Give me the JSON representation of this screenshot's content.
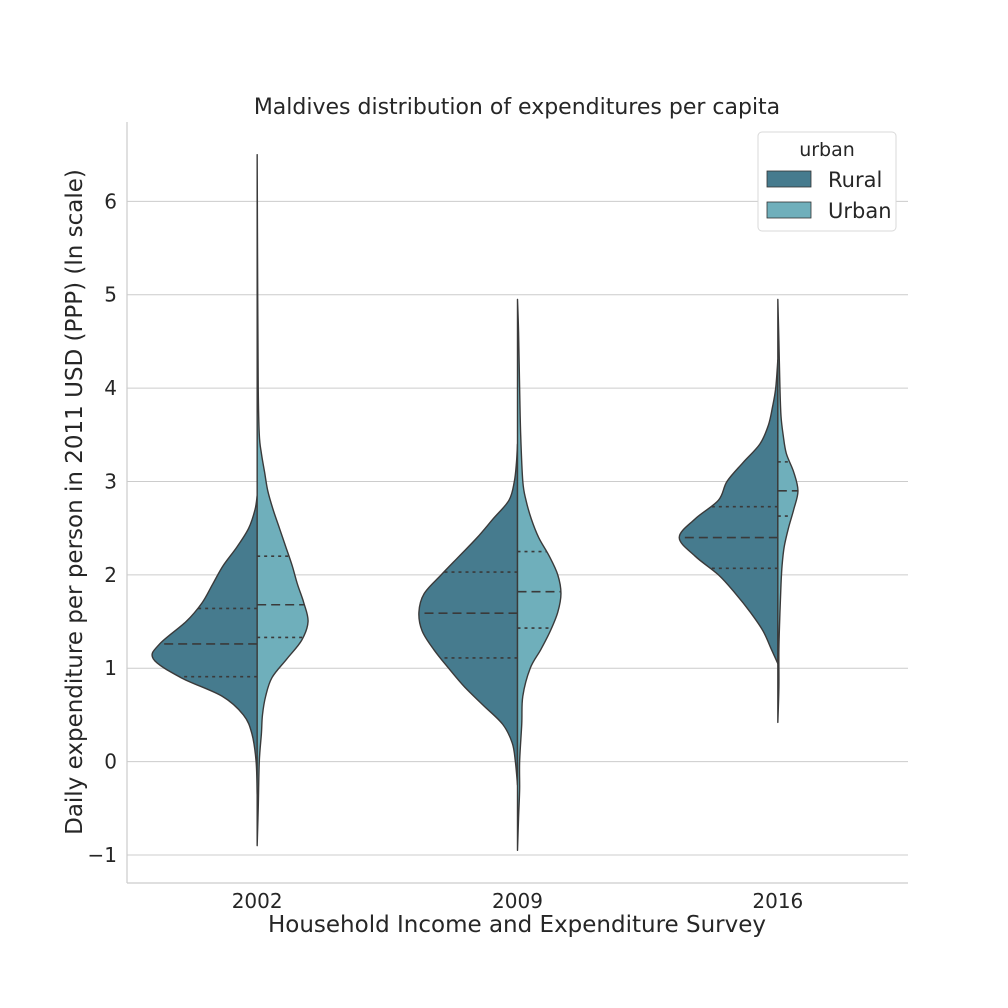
{
  "chart_data": {
    "type": "violin",
    "title": "Maldives distribution of expenditures per capita",
    "xlabel": "Household Income and Expenditure Survey",
    "ylabel": "Daily expenditure per person in 2011 USD (PPP) (ln scale)",
    "categories": [
      "2002",
      "2009",
      "2016"
    ],
    "ylim": [
      -1.3,
      6.85
    ],
    "yticks": [
      -1,
      0,
      1,
      2,
      3,
      4,
      5,
      6
    ],
    "ytick_labels": [
      "−1",
      "0",
      "1",
      "2",
      "3",
      "4",
      "5",
      "6"
    ],
    "grid": "horizontal",
    "split": true,
    "inner": "quartile",
    "legend": {
      "title": "urban",
      "placement": "top-right",
      "entries": [
        {
          "label": "Rural",
          "color": "#467b8e"
        },
        {
          "label": "Urban",
          "color": "#6fafbb"
        }
      ]
    },
    "series": [
      {
        "name": "Rural",
        "color": "#467b8e",
        "groups": [
          {
            "category": "2002",
            "quartiles": [
              0.91,
              1.26,
              1.64
            ],
            "profile": [
              [
                -0.35,
                0
              ],
              [
                0,
                0.01
              ],
              [
                0.3,
                0.05
              ],
              [
                0.5,
                0.13
              ],
              [
                0.7,
                0.33
              ],
              [
                0.9,
                0.72
              ],
              [
                1.1,
                0.98
              ],
              [
                1.26,
                0.92
              ],
              [
                1.5,
                0.67
              ],
              [
                1.7,
                0.52
              ],
              [
                1.9,
                0.42
              ],
              [
                2.1,
                0.32
              ],
              [
                2.3,
                0.19
              ],
              [
                2.5,
                0.08
              ],
              [
                2.7,
                0.02
              ],
              [
                2.85,
                0
              ]
            ]
          },
          {
            "category": "2009",
            "quartiles": [
              1.11,
              1.59,
              2.03
            ],
            "profile": [
              [
                -0.25,
                0
              ],
              [
                0,
                0.02
              ],
              [
                0.2,
                0.05
              ],
              [
                0.4,
                0.14
              ],
              [
                0.6,
                0.32
              ],
              [
                0.8,
                0.5
              ],
              [
                1.0,
                0.65
              ],
              [
                1.2,
                0.79
              ],
              [
                1.4,
                0.9
              ],
              [
                1.6,
                0.93
              ],
              [
                1.8,
                0.88
              ],
              [
                2.0,
                0.72
              ],
              [
                2.2,
                0.55
              ],
              [
                2.4,
                0.38
              ],
              [
                2.6,
                0.23
              ],
              [
                2.8,
                0.08
              ],
              [
                3.0,
                0.03
              ],
              [
                3.2,
                0.01
              ],
              [
                3.4,
                0
              ]
            ]
          },
          {
            "category": "2016",
            "quartiles": [
              2.07,
              2.4,
              2.73
            ],
            "profile": [
              [
                1.05,
                0
              ],
              [
                1.2,
                0.06
              ],
              [
                1.4,
                0.14
              ],
              [
                1.6,
                0.26
              ],
              [
                1.8,
                0.4
              ],
              [
                2.0,
                0.56
              ],
              [
                2.2,
                0.78
              ],
              [
                2.4,
                0.93
              ],
              [
                2.6,
                0.78
              ],
              [
                2.8,
                0.56
              ],
              [
                3.0,
                0.48
              ],
              [
                3.2,
                0.33
              ],
              [
                3.4,
                0.17
              ],
              [
                3.6,
                0.09
              ],
              [
                3.8,
                0.05
              ],
              [
                4.0,
                0.02
              ],
              [
                4.3,
                0
              ]
            ]
          }
        ]
      },
      {
        "name": "Urban",
        "color": "#6fafbb",
        "groups": [
          {
            "category": "2002",
            "quartiles": [
              1.33,
              1.68,
              2.2
            ],
            "profile": [
              [
                -0.9,
                0
              ],
              [
                -0.5,
                0.01
              ],
              [
                0,
                0.02
              ],
              [
                0.3,
                0.04
              ],
              [
                0.5,
                0.05
              ],
              [
                0.7,
                0.08
              ],
              [
                0.9,
                0.14
              ],
              [
                1.1,
                0.28
              ],
              [
                1.3,
                0.42
              ],
              [
                1.5,
                0.48
              ],
              [
                1.7,
                0.44
              ],
              [
                1.9,
                0.38
              ],
              [
                2.1,
                0.33
              ],
              [
                2.3,
                0.27
              ],
              [
                2.5,
                0.21
              ],
              [
                2.7,
                0.15
              ],
              [
                2.9,
                0.1
              ],
              [
                3.1,
                0.07
              ],
              [
                3.3,
                0.04
              ],
              [
                3.5,
                0.02
              ],
              [
                4.0,
                0.01
              ],
              [
                5.0,
                0.005
              ],
              [
                6.5,
                0
              ]
            ]
          },
          {
            "category": "2009",
            "quartiles": [
              1.43,
              1.82,
              2.25
            ],
            "profile": [
              [
                -0.95,
                0
              ],
              [
                -0.6,
                0.01
              ],
              [
                -0.3,
                0.02
              ],
              [
                0,
                0.02
              ],
              [
                0.4,
                0.04
              ],
              [
                0.7,
                0.05
              ],
              [
                1.0,
                0.12
              ],
              [
                1.2,
                0.22
              ],
              [
                1.4,
                0.31
              ],
              [
                1.6,
                0.38
              ],
              [
                1.8,
                0.41
              ],
              [
                2.0,
                0.38
              ],
              [
                2.2,
                0.3
              ],
              [
                2.4,
                0.2
              ],
              [
                2.6,
                0.13
              ],
              [
                2.8,
                0.08
              ],
              [
                3.0,
                0.05
              ],
              [
                3.5,
                0.03
              ],
              [
                4.0,
                0.02
              ],
              [
                4.6,
                0.01
              ],
              [
                4.95,
                0
              ]
            ]
          },
          {
            "category": "2016",
            "quartiles": [
              2.63,
              2.9,
              3.21
            ],
            "profile": [
              [
                0.42,
                0
              ],
              [
                0.8,
                0.01
              ],
              [
                1.2,
                0.01
              ],
              [
                1.6,
                0.02
              ],
              [
                1.9,
                0.03
              ],
              [
                2.1,
                0.04
              ],
              [
                2.3,
                0.06
              ],
              [
                2.5,
                0.1
              ],
              [
                2.7,
                0.15
              ],
              [
                2.9,
                0.19
              ],
              [
                3.1,
                0.15
              ],
              [
                3.3,
                0.08
              ],
              [
                3.5,
                0.05
              ],
              [
                3.7,
                0.03
              ],
              [
                4.0,
                0.02
              ],
              [
                4.5,
                0.01
              ],
              [
                4.95,
                0
              ]
            ]
          }
        ]
      }
    ]
  }
}
